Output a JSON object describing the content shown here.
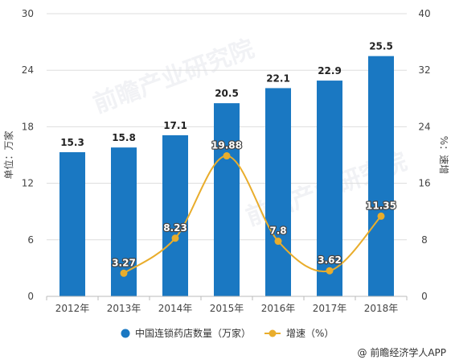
{
  "chart_data": {
    "type": "bar",
    "categories": [
      "2012年",
      "2013年",
      "2014年",
      "2015年",
      "2016年",
      "2017年",
      "2018年"
    ],
    "series": [
      {
        "name": "中国连锁药店数量（万家）",
        "type": "bar",
        "axis": "left",
        "values": [
          15.3,
          15.8,
          17.1,
          20.5,
          22.1,
          22.9,
          25.5
        ],
        "color": "#1a78c2"
      },
      {
        "name": "增速（%）",
        "type": "line",
        "axis": "right",
        "values": [
          null,
          3.27,
          8.23,
          19.88,
          7.8,
          3.62,
          11.35
        ],
        "color": "#e9ad2c"
      }
    ],
    "ylabel": "单位：万家",
    "y2label": "%：速增",
    "ylim": [
      0,
      30
    ],
    "y2lim": [
      0,
      40
    ],
    "yticks": [
      0,
      6,
      12,
      18,
      24,
      30
    ],
    "y2ticks": [
      0,
      8,
      16,
      24,
      32,
      40
    ],
    "grid": true,
    "legend_position": "bottom"
  },
  "watermark": "前瞻产业研究院",
  "credit": "@ 前瞻经济学人APP"
}
